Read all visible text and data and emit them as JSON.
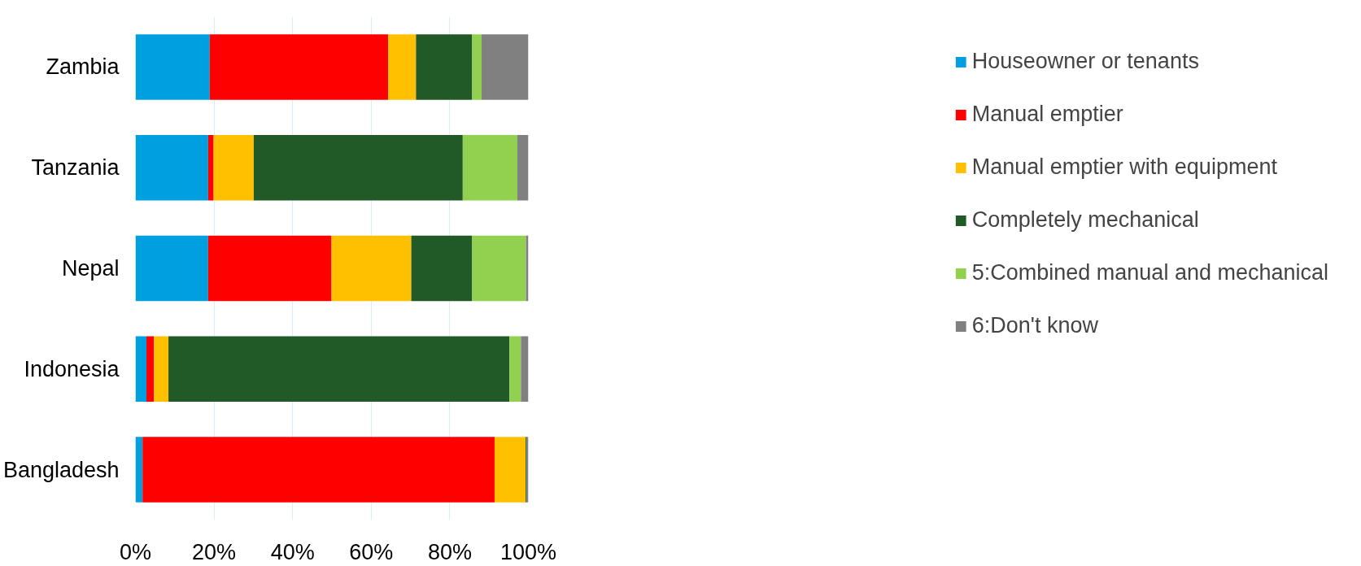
{
  "chart_data": {
    "type": "bar",
    "orientation": "horizontal",
    "stacked": true,
    "categories": [
      "Zambia",
      "Tanzania",
      "Nepal",
      "Indonesia",
      "Bangladesh"
    ],
    "series": [
      {
        "name": "Houseowner or tenants",
        "color": "#009fdf",
        "values": [
          18.9,
          18.5,
          18.5,
          2.8,
          1.8
        ]
      },
      {
        "name": "Manual emptier",
        "color": "#ff0000",
        "values": [
          45.4,
          1.4,
          31.4,
          1.9,
          89.6
        ]
      },
      {
        "name": "Manual emptier with equipment",
        "color": "#ffc000",
        "values": [
          7.1,
          10.2,
          20.3,
          3.7,
          7.9
        ]
      },
      {
        "name": "Completely mechanical",
        "color": "#215a26",
        "values": [
          14.3,
          53.2,
          15.5,
          86.8,
          0.3
        ]
      },
      {
        "name": "5:Combined manual and mechanical",
        "color": "#92d050",
        "values": [
          2.4,
          13.9,
          13.7,
          2.9,
          0
        ]
      },
      {
        "name": "6:Don't know",
        "color": "#808080",
        "values": [
          11.9,
          2.8,
          0.6,
          1.9,
          0.4
        ]
      }
    ],
    "xlim": [
      0,
      100
    ],
    "xticks": [
      {
        "value": 0,
        "label": "0%"
      },
      {
        "value": 20,
        "label": "20%"
      },
      {
        "value": 40,
        "label": "40%"
      },
      {
        "value": 60,
        "label": "60%"
      },
      {
        "value": 80,
        "label": "80%"
      },
      {
        "value": 100,
        "label": "100%"
      }
    ],
    "grid": "x",
    "legend": "right"
  }
}
